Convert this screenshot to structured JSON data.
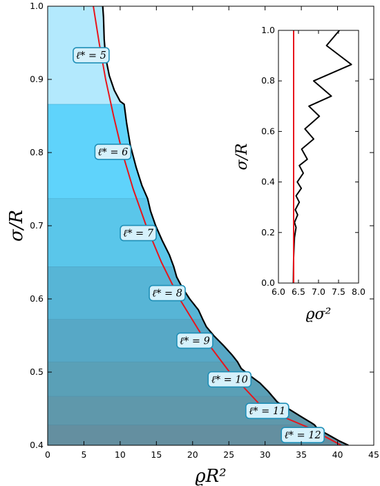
{
  "chart_data": [
    {
      "type": "area",
      "xlabel": "ϱR²",
      "ylabel": "σ/R",
      "xlim": [
        0,
        45
      ],
      "ylim": [
        0.4,
        1.0
      ],
      "xticks": [
        "0",
        "5",
        "10",
        "15",
        "20",
        "25",
        "30",
        "35",
        "40",
        "45"
      ],
      "yticks": [
        "0.4",
        "0.5",
        "0.6",
        "0.7",
        "0.8",
        "0.9",
        "1.0"
      ],
      "bands": [
        {
          "label": "ℓ* = 5",
          "y_from": 0.866,
          "y_to": 1.0,
          "color": "#b3e9fd"
        },
        {
          "label": "ℓ* = 6",
          "y_from": 0.737,
          "y_to": 0.866,
          "color": "#5fd3fb"
        },
        {
          "label": "ℓ* = 7",
          "y_from": 0.644,
          "y_to": 0.737,
          "color": "#5ac6ea"
        },
        {
          "label": "ℓ* = 8",
          "y_from": 0.572,
          "y_to": 0.644,
          "color": "#57b5d6"
        },
        {
          "label": "ℓ* = 9",
          "y_from": 0.514,
          "y_to": 0.572,
          "color": "#57a8c6"
        },
        {
          "label": "ℓ* = 10",
          "y_from": 0.467,
          "y_to": 0.514,
          "color": "#5aa0b7"
        },
        {
          "label": "ℓ* = 11",
          "y_from": 0.428,
          "y_to": 0.467,
          "color": "#5f98ab"
        },
        {
          "label": "ℓ* = 12",
          "y_from": 0.4,
          "y_to": 0.428,
          "color": "#648fa0"
        }
      ],
      "series": [
        {
          "color": "#000000",
          "points": [
            [
              7.6,
              1.0
            ],
            [
              7.7,
              0.985
            ],
            [
              7.8,
              0.955
            ],
            [
              8.0,
              0.93
            ],
            [
              8.5,
              0.905
            ],
            [
              9.2,
              0.885
            ],
            [
              10.0,
              0.87
            ],
            [
              10.55,
              0.866
            ],
            [
              10.9,
              0.84
            ],
            [
              11.4,
              0.81
            ],
            [
              12.2,
              0.78
            ],
            [
              13.0,
              0.755
            ],
            [
              13.8,
              0.737
            ],
            [
              14.2,
              0.72
            ],
            [
              14.9,
              0.7
            ],
            [
              15.8,
              0.68
            ],
            [
              16.8,
              0.66
            ],
            [
              17.4,
              0.644
            ],
            [
              17.8,
              0.63
            ],
            [
              18.6,
              0.615
            ],
            [
              19.6,
              0.6
            ],
            [
              20.8,
              0.585
            ],
            [
              21.4,
              0.572
            ],
            [
              21.9,
              0.562
            ],
            [
              22.9,
              0.55
            ],
            [
              24.2,
              0.537
            ],
            [
              25.4,
              0.524
            ],
            [
              26.2,
              0.514
            ],
            [
              26.7,
              0.505
            ],
            [
              27.8,
              0.496
            ],
            [
              29.3,
              0.485
            ],
            [
              30.4,
              0.474
            ],
            [
              31.0,
              0.467
            ],
            [
              31.7,
              0.459
            ],
            [
              33.2,
              0.45
            ],
            [
              35.0,
              0.439
            ],
            [
              36.5,
              0.43
            ],
            [
              36.8,
              0.428
            ],
            [
              37.3,
              0.422
            ],
            [
              38.6,
              0.415
            ],
            [
              40.2,
              0.406
            ],
            [
              41.5,
              0.4
            ]
          ]
        },
        {
          "color": "#e8141b",
          "points": [
            [
              6.3,
              1.0
            ],
            [
              7.1,
              0.95
            ],
            [
              8.0,
              0.9
            ],
            [
              9.1,
              0.85
            ],
            [
              10.3,
              0.8
            ],
            [
              11.8,
              0.75
            ],
            [
              13.6,
              0.7
            ],
            [
              15.7,
              0.65
            ],
            [
              18.2,
              0.6
            ],
            [
              21.3,
              0.55
            ],
            [
              25.1,
              0.5
            ],
            [
              29.8,
              0.45
            ],
            [
              35.8,
              0.425
            ],
            [
              40.5,
              0.4
            ]
          ]
        }
      ]
    },
    {
      "type": "line",
      "xlabel": "ϱσ²",
      "ylabel": "σ/R",
      "xlim": [
        6.0,
        8.0
      ],
      "ylim": [
        0.0,
        1.0
      ],
      "xticks": [
        "6.0",
        "6.5",
        "7.0",
        "7.5",
        "8.0"
      ],
      "yticks": [
        "0.0",
        "0.2",
        "0.4",
        "0.6",
        "0.8",
        "1.0"
      ],
      "series": [
        {
          "color": "#000000",
          "points": [
            [
              6.37,
              0.0
            ],
            [
              6.38,
              0.1
            ],
            [
              6.4,
              0.18
            ],
            [
              6.44,
              0.22
            ],
            [
              6.4,
              0.24
            ],
            [
              6.48,
              0.27
            ],
            [
              6.42,
              0.29
            ],
            [
              6.52,
              0.32
            ],
            [
              6.44,
              0.345
            ],
            [
              6.57,
              0.375
            ],
            [
              6.47,
              0.4
            ],
            [
              6.62,
              0.435
            ],
            [
              6.52,
              0.465
            ],
            [
              6.72,
              0.49
            ],
            [
              6.58,
              0.53
            ],
            [
              6.88,
              0.57
            ],
            [
              6.66,
              0.61
            ],
            [
              7.02,
              0.66
            ],
            [
              6.76,
              0.7
            ],
            [
              7.32,
              0.74
            ],
            [
              6.88,
              0.8
            ],
            [
              7.82,
              0.865
            ],
            [
              7.2,
              0.94
            ],
            [
              7.52,
              1.0
            ]
          ]
        },
        {
          "color": "#e8141b",
          "points": [
            [
              6.38,
              0.0
            ],
            [
              6.38,
              1.0
            ]
          ]
        }
      ]
    }
  ]
}
